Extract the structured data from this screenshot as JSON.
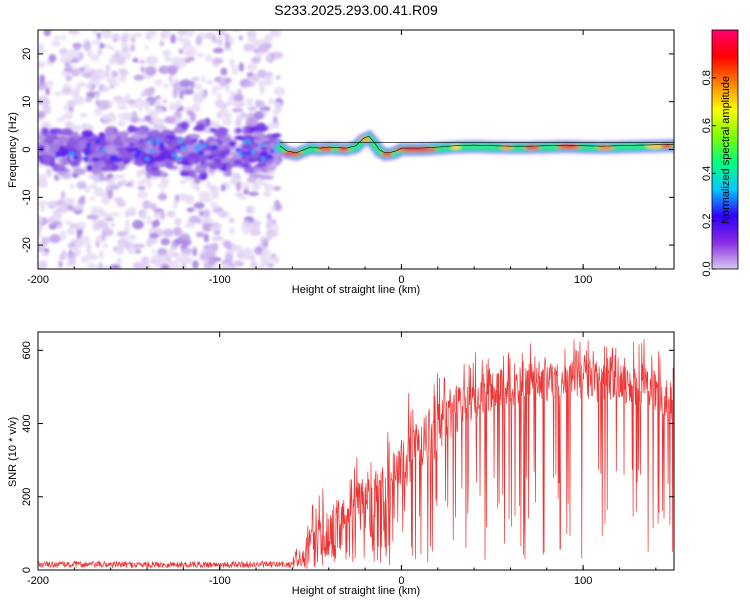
{
  "title": "S233.2025.293.00.41.R09",
  "chart_data": [
    {
      "type": "heatmap",
      "title": "S233.2025.293.00.41.R09",
      "xlabel": "Height of straight line (km)",
      "ylabel": "Frequency (Hz)",
      "xlim": [
        -200,
        150
      ],
      "ylim": [
        -25,
        25
      ],
      "xticks": [
        -200,
        -100,
        0,
        100
      ],
      "yticks": [
        -20,
        -10,
        0,
        10,
        20
      ],
      "colorbar": {
        "label": "Normalized spectral amplitude",
        "range": [
          0,
          1
        ],
        "ticks": [
          0.0,
          0.2,
          0.4,
          0.6,
          0.8
        ],
        "colors": [
          "#d8c8f0",
          "#8a2be2",
          "#3000ff",
          "#00c8ff",
          "#00ff80",
          "#80ff00",
          "#ffff00",
          "#ff8000",
          "#ff0000",
          "#ff0070"
        ]
      },
      "ridge": {
        "x": [
          -67,
          -63,
          -58,
          -54,
          -50,
          -45,
          -40,
          -35,
          -30,
          -25,
          -21,
          -18,
          -15,
          -12,
          -9,
          -6,
          -3,
          0,
          5,
          10,
          20,
          30,
          40,
          50,
          60,
          70,
          80,
          90,
          100,
          110,
          120,
          130,
          140,
          150
        ],
        "y": [
          0.5,
          -0.6,
          -1.0,
          -0.4,
          0.2,
          0.0,
          0.2,
          0.1,
          0.0,
          0.5,
          2.0,
          2.5,
          1.2,
          -0.4,
          -1.0,
          -0.9,
          -0.6,
          0.0,
          0.0,
          0.0,
          0.2,
          0.5,
          0.6,
          0.5,
          0.4,
          0.4,
          0.5,
          0.6,
          0.5,
          0.4,
          0.5,
          0.6,
          0.7,
          0.8
        ]
      },
      "noise_region": {
        "x_range": [
          -200,
          -67
        ],
        "freq_range": [
          -25,
          25
        ],
        "dense_band_freq": [
          -4,
          4
        ]
      }
    },
    {
      "type": "line",
      "xlabel": "Height of straight line (km)",
      "ylabel": "SNR (10 * v/v)",
      "xlim": [
        -200,
        150
      ],
      "ylim": [
        0,
        650
      ],
      "xticks": [
        -200,
        -100,
        0,
        100
      ],
      "yticks": [
        0,
        200,
        400,
        600
      ],
      "color": "#ee3333",
      "envelope": {
        "x": [
          -200,
          -100,
          -60,
          -50,
          -40,
          -30,
          -20,
          -10,
          0,
          10,
          20,
          30,
          40,
          50,
          60,
          70,
          80,
          90,
          100,
          110,
          120,
          130,
          140,
          150
        ],
        "mean": [
          15,
          15,
          15,
          60,
          100,
          140,
          180,
          230,
          290,
          340,
          380,
          440,
          470,
          490,
          500,
          510,
          510,
          520,
          520,
          510,
          510,
          500,
          490,
          480
        ],
        "max": [
          30,
          30,
          35,
          180,
          260,
          310,
          330,
          380,
          460,
          520,
          560,
          590,
          610,
          610,
          620,
          620,
          620,
          630,
          640,
          640,
          620,
          630,
          640,
          640
        ]
      }
    }
  ]
}
